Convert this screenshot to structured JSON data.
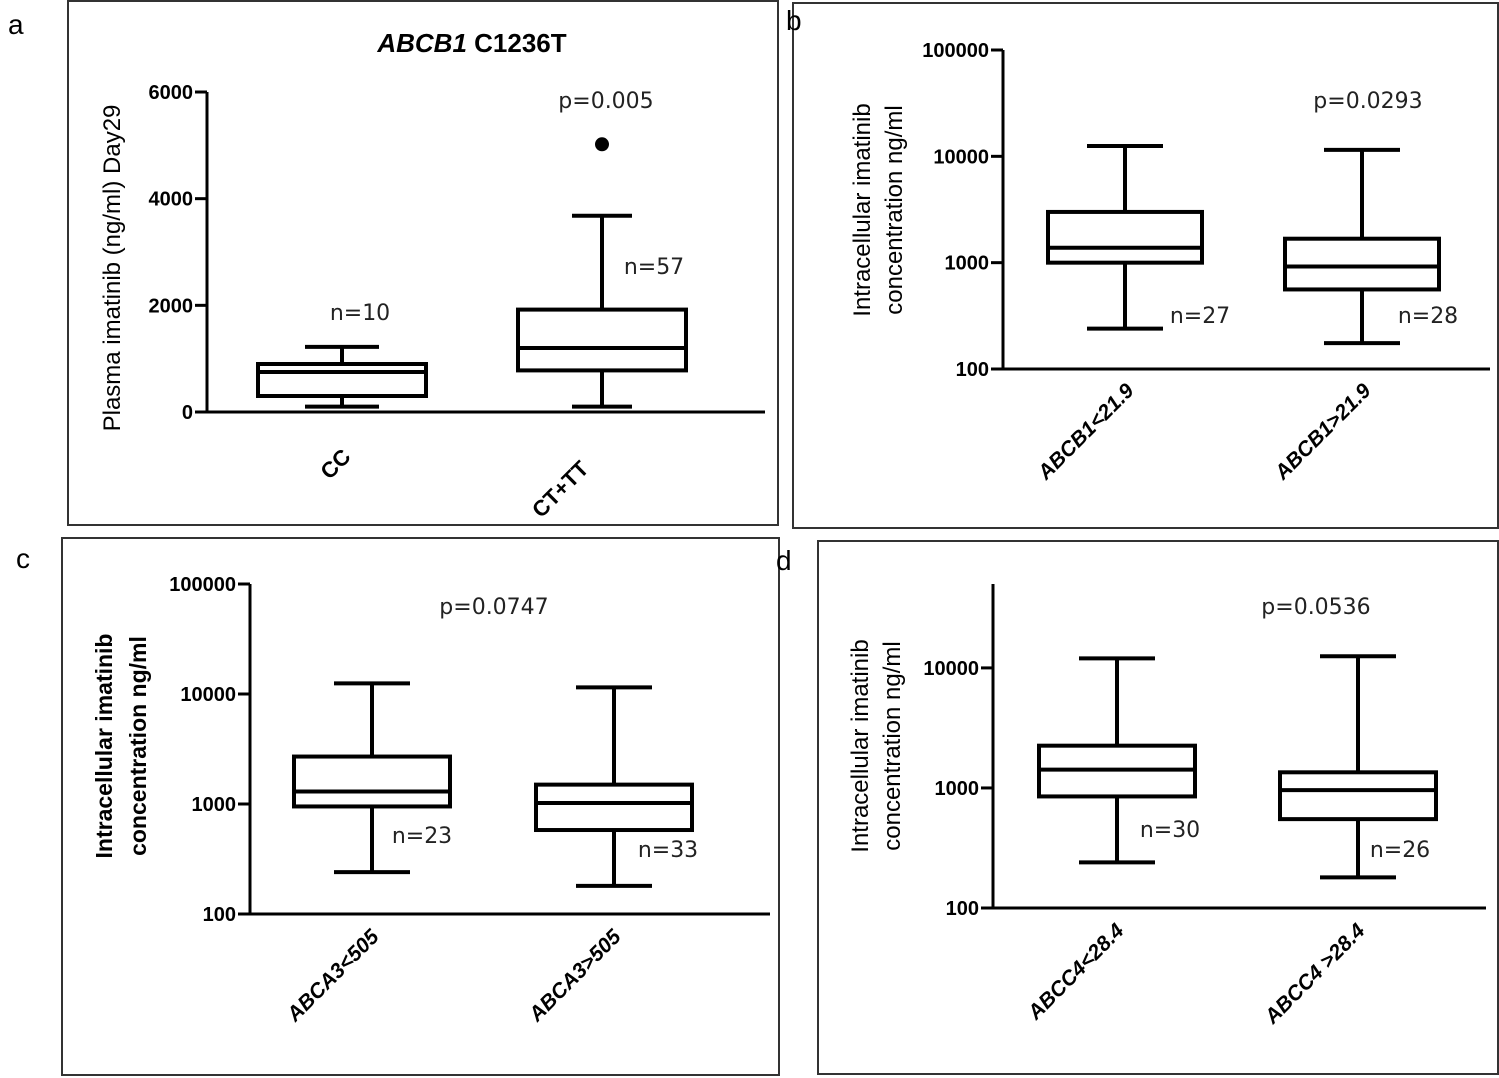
{
  "chart_data": [
    {
      "panel": "a",
      "type": "box",
      "title_italic": "ABCB1",
      "title_rest": " C1236T",
      "ylabel": "Plasma imatinib  (ng/ml) Day29",
      "yscale": "linear",
      "ylim": [
        0,
        6000
      ],
      "yticks": [
        0,
        2000,
        4000,
        6000
      ],
      "ytick_labels": [
        "0",
        "2000",
        "4000",
        "6000"
      ],
      "p_value": "p=0.005",
      "groups": [
        {
          "label": "CC",
          "n_label": "n=10",
          "whisker_low": 100,
          "q1": 300,
          "median": 750,
          "q3": 900,
          "whisker_high": 1220
        },
        {
          "label": "CT+TT",
          "n_label": "n=57",
          "whisker_low": 100,
          "q1": 780,
          "median": 1200,
          "q3": 1920,
          "whisker_high": 3680,
          "outliers": [
            5020
          ]
        }
      ]
    },
    {
      "panel": "b",
      "type": "box",
      "ylabel_lines": [
        "Intracellular imatinib",
        "concentration ng/ml"
      ],
      "yscale": "log",
      "ylim": [
        100,
        100000
      ],
      "yticks": [
        100,
        1000,
        10000,
        100000
      ],
      "ytick_labels": [
        "100",
        "1000",
        "10000",
        "100000"
      ],
      "p_value": "p=0.0293",
      "groups": [
        {
          "label": "ABCB1<21.9",
          "n_label": "n=27",
          "whisker_low": 240,
          "q1": 1000,
          "median": 1380,
          "q3": 3000,
          "whisker_high": 12500
        },
        {
          "label": "ABCB1>21.9",
          "n_label": "n=28",
          "whisker_low": 175,
          "q1": 560,
          "median": 920,
          "q3": 1680,
          "whisker_high": 11500
        }
      ]
    },
    {
      "panel": "c",
      "type": "box",
      "ylabel_lines": [
        "Intracellular imatinib",
        "concentration ng/ml"
      ],
      "yscale": "log",
      "ylim": [
        100,
        100000
      ],
      "yticks": [
        100,
        1000,
        10000,
        100000
      ],
      "ytick_labels": [
        "100",
        "1000",
        "10000",
        "100000"
      ],
      "p_value": "p=0.0747",
      "groups": [
        {
          "label": "ABCA3<505",
          "n_label": "n=23",
          "whisker_low": 240,
          "q1": 950,
          "median": 1300,
          "q3": 2700,
          "whisker_high": 12500
        },
        {
          "label": "ABCA3>505",
          "n_label": "n=33",
          "whisker_low": 180,
          "q1": 580,
          "median": 1020,
          "q3": 1500,
          "whisker_high": 11500
        }
      ]
    },
    {
      "panel": "d",
      "type": "box",
      "ylabel_lines": [
        "Intracellular imatinib",
        "concentration ng/ml"
      ],
      "yscale": "log",
      "ylim": [
        100,
        50000
      ],
      "yticks": [
        100,
        1000,
        10000
      ],
      "ytick_labels": [
        "100",
        "1000",
        "10000"
      ],
      "p_value": "p=0.0536",
      "groups": [
        {
          "label": "ABCC4<28.4",
          "n_label": "n=30",
          "whisker_low": 240,
          "q1": 850,
          "median": 1420,
          "q3": 2250,
          "whisker_high": 12000
        },
        {
          "label": "ABCC4 >28.4",
          "n_label": "n=26",
          "whisker_low": 180,
          "q1": 550,
          "median": 960,
          "q3": 1350,
          "whisker_high": 12500
        }
      ]
    }
  ]
}
